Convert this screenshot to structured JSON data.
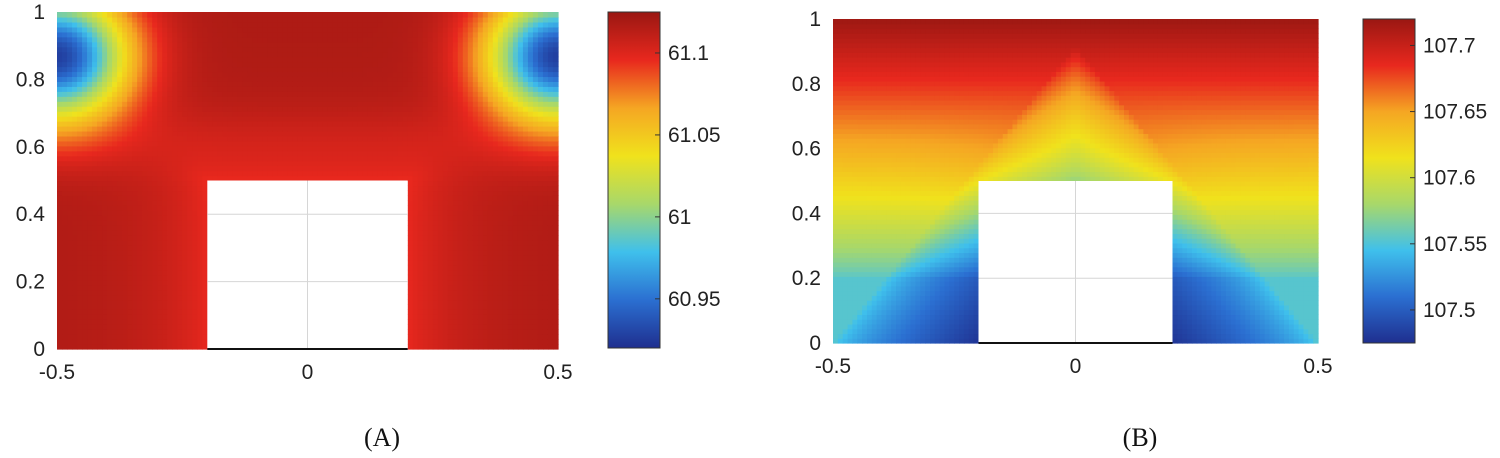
{
  "chart_data": [
    {
      "type": "heatmap",
      "panel_label": "(A)",
      "xlim": [
        -0.5,
        0.5
      ],
      "ylim": [
        0,
        1
      ],
      "x_ticks": [
        -0.5,
        0,
        0.5
      ],
      "x_tick_labels": [
        "-0.5",
        "0",
        "0.5"
      ],
      "y_ticks": [
        0,
        0.2,
        0.4,
        0.6,
        0.8,
        1
      ],
      "y_tick_labels": [
        "0",
        "0.2",
        "0.4",
        "0.6",
        "0.8",
        "1"
      ],
      "obstacle": {
        "x": [
          -0.2,
          0.2
        ],
        "y": [
          0,
          0.5
        ]
      },
      "colorbar": {
        "range": [
          60.92,
          61.125
        ],
        "ticks": [
          60.95,
          61,
          61.05,
          61.1
        ],
        "tick_labels": [
          "60.95",
          "61",
          "61.05",
          "61.1"
        ]
      },
      "field_notes": [
        "minimum near (-0.5, 0.87) and (0.5, 0.87)",
        "maximum near top center and lower side walls"
      ]
    },
    {
      "type": "heatmap",
      "panel_label": "(B)",
      "xlim": [
        -0.5,
        0.5
      ],
      "ylim": [
        0,
        1
      ],
      "x_ticks": [
        -0.5,
        0,
        0.5
      ],
      "x_tick_labels": [
        "-0.5",
        "0",
        "0.5"
      ],
      "y_ticks": [
        0,
        0.2,
        0.4,
        0.6,
        0.8,
        1
      ],
      "y_tick_labels": [
        "0",
        "0.2",
        "0.4",
        "0.6",
        "0.8",
        "1"
      ],
      "obstacle": {
        "x": [
          -0.2,
          0.2
        ],
        "y": [
          0,
          0.5
        ]
      },
      "colorbar": {
        "range": [
          107.475,
          107.72
        ],
        "ticks": [
          107.5,
          107.55,
          107.6,
          107.65,
          107.7
        ],
        "tick_labels": [
          "107.5",
          "107.55",
          "107.6",
          "107.65",
          "107.7"
        ]
      },
      "field_notes": [
        "increases with y; maximum at top",
        "minimum at bottom beside obstacle corners"
      ]
    }
  ],
  "colors": {
    "jet": [
      "#1f2f8f",
      "#2b6fd1",
      "#3fc0ec",
      "#a8d86a",
      "#f0e21c",
      "#f5a623",
      "#e8281e",
      "#9a1712"
    ]
  }
}
